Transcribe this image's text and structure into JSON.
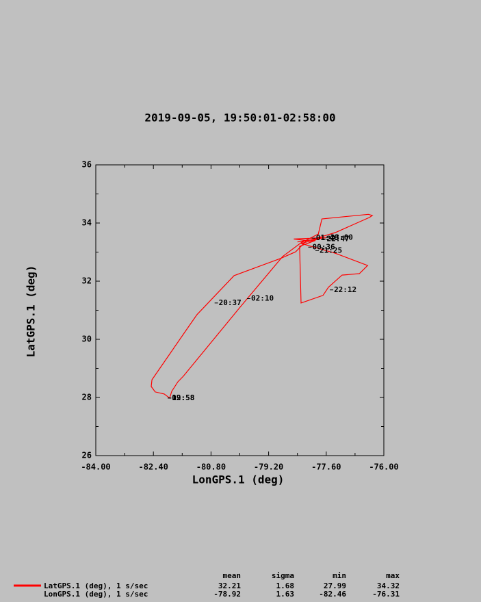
{
  "chart_data": {
    "type": "line",
    "title": "2019-09-05, 19:50:01-02:58:00",
    "xlabel": "LonGPS.1 (deg)",
    "ylabel": "LatGPS.1 (deg)",
    "x": [
      -78.11,
      -78.45,
      -78.87,
      -80.16,
      -81.19,
      -81.43,
      -82.44,
      -82.46,
      -82.35,
      -82.1,
      -81.95,
      -81.89,
      -81.72,
      -81.57,
      -80.01,
      -78.81,
      -78.3,
      -77.82,
      -77.72,
      -76.43,
      -76.32,
      -76.4,
      -77.35,
      -78.11,
      -78.5,
      -77.6,
      -78.4,
      -77.8,
      -78.3,
      -77.35,
      -76.45,
      -76.68,
      -77.16,
      -77.54,
      -77.69,
      -78.3,
      -78.34,
      -77.9
    ],
    "series": [
      {
        "name": "LatGPS.1 (deg), 1 s/sec",
        "color": "#ff0000",
        "values": [
          33.44,
          33.01,
          32.78,
          32.19,
          30.85,
          30.42,
          28.61,
          28.38,
          28.19,
          28.12,
          27.98,
          28.21,
          28.54,
          28.73,
          31.08,
          32.85,
          33.32,
          33.62,
          34.14,
          34.3,
          34.26,
          34.19,
          33.67,
          33.39,
          33.45,
          33.5,
          33.35,
          33.45,
          33.3,
          32.96,
          32.54,
          32.26,
          32.21,
          31.79,
          31.51,
          31.25,
          33.2,
          33.4
        ]
      }
    ],
    "xlim": [
      -84.0,
      -76.0
    ],
    "xticks": [
      {
        "value": -84.0,
        "label": "-84.00"
      },
      {
        "value": -82.4,
        "label": "-82.40"
      },
      {
        "value": -80.8,
        "label": "-80.80"
      },
      {
        "value": -79.2,
        "label": "-79.20"
      },
      {
        "value": -77.6,
        "label": "-77.60"
      },
      {
        "value": -76.0,
        "label": "-76.00"
      }
    ],
    "ylim": [
      26,
      36
    ],
    "yticks": [
      26,
      28,
      30,
      32,
      34,
      36
    ],
    "annotations": [
      {
        "text": "19:58",
        "x": -82.0,
        "y": 27.98
      },
      {
        "text": "02:58",
        "x": -82.0,
        "y": 27.98
      },
      {
        "text": "20:37",
        "x": -80.7,
        "y": 31.25
      },
      {
        "text": "02:10",
        "x": -79.8,
        "y": 31.4
      },
      {
        "text": "22:12",
        "x": -77.5,
        "y": 31.7
      },
      {
        "text": "21:25",
        "x": -77.9,
        "y": 33.05
      },
      {
        "text": "00:36",
        "x": -78.1,
        "y": 33.17
      },
      {
        "text": "01:48",
        "x": -78.0,
        "y": 33.48
      },
      {
        "text": "23:00",
        "x": -77.6,
        "y": 33.5
      },
      {
        "text": "22:47",
        "x": -77.7,
        "y": 33.45
      }
    ]
  },
  "stats": {
    "columns": [
      "mean",
      "sigma",
      "min",
      "max"
    ],
    "rows": [
      {
        "label": "LatGPS.1 (deg), 1 s/sec",
        "values": [
          32.21,
          1.68,
          27.99,
          34.32
        ]
      },
      {
        "label": "LonGPS.1 (deg), 1 s/sec",
        "values": [
          -78.92,
          1.63,
          -82.46,
          -76.31
        ]
      }
    ]
  }
}
